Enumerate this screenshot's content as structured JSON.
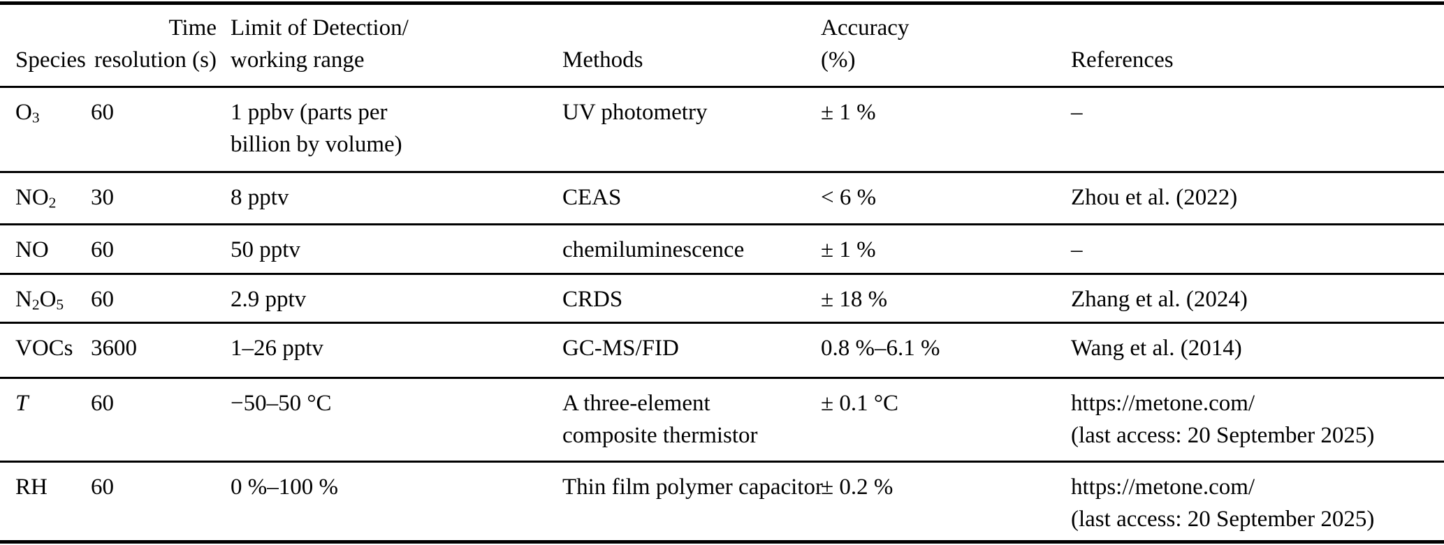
{
  "page": {
    "background": "#ffffff",
    "text_color": "#000000",
    "rule_color": "#000000"
  },
  "table": {
    "columns": [
      {
        "id": "species",
        "label": "Species",
        "align": "left"
      },
      {
        "id": "time_resolution",
        "label": "Time\nresolution (s)",
        "align": "right"
      },
      {
        "id": "lod",
        "label": "Limit of Detection/\nworking range",
        "align": "left"
      },
      {
        "id": "methods",
        "label": "Methods",
        "align": "left"
      },
      {
        "id": "accuracy",
        "label": "Accuracy\n(%)",
        "align": "left"
      },
      {
        "id": "references",
        "label": "References",
        "align": "left"
      }
    ],
    "rows": [
      {
        "species": [
          {
            "text": "O"
          },
          {
            "text": "3",
            "sub": true
          }
        ],
        "time_resolution": "60",
        "lod": "1 ppbv (parts per\nbillion by volume)",
        "methods": "UV photometry",
        "accuracy": "± 1 %",
        "references": "–"
      },
      {
        "species": [
          {
            "text": "NO"
          },
          {
            "text": "2",
            "sub": true
          }
        ],
        "time_resolution": "30",
        "lod": "8 pptv",
        "methods": "CEAS",
        "accuracy": "< 6 %",
        "references": "Zhou et al. (2022)"
      },
      {
        "species": [
          {
            "text": "NO"
          }
        ],
        "time_resolution": "60",
        "lod": "50 pptv",
        "methods": "chemiluminescence",
        "accuracy": "± 1 %",
        "references": "–"
      },
      {
        "species": [
          {
            "text": "N"
          },
          {
            "text": "2",
            "sub": true
          },
          {
            "text": "O"
          },
          {
            "text": "5",
            "sub": true
          }
        ],
        "time_resolution": "60",
        "lod": "2.9 pptv",
        "methods": "CRDS",
        "accuracy": "± 18 %",
        "references": "Zhang et al. (2024)"
      },
      {
        "species": [
          {
            "text": "VOCs"
          }
        ],
        "time_resolution": "3600",
        "lod": "1–26 pptv",
        "methods": "GC-MS/FID",
        "accuracy": "0.8 %–6.1 %",
        "references": "Wang et al. (2014)"
      },
      {
        "species": [
          {
            "text": "T",
            "italic": true
          }
        ],
        "time_resolution": "60",
        "lod": "−50–50 °C",
        "methods": "A three-element\ncomposite thermistor",
        "accuracy": "± 0.1 °C",
        "references": "https://metone.com/\n(last access: 20 September 2025)"
      },
      {
        "species": [
          {
            "text": "RH"
          }
        ],
        "time_resolution": "60",
        "lod": "0 %–100 %",
        "methods": "Thin film polymer capacitor",
        "accuracy": "± 0.2 %",
        "references": "https://metone.com/\n(last access: 20 September 2025)"
      }
    ]
  }
}
